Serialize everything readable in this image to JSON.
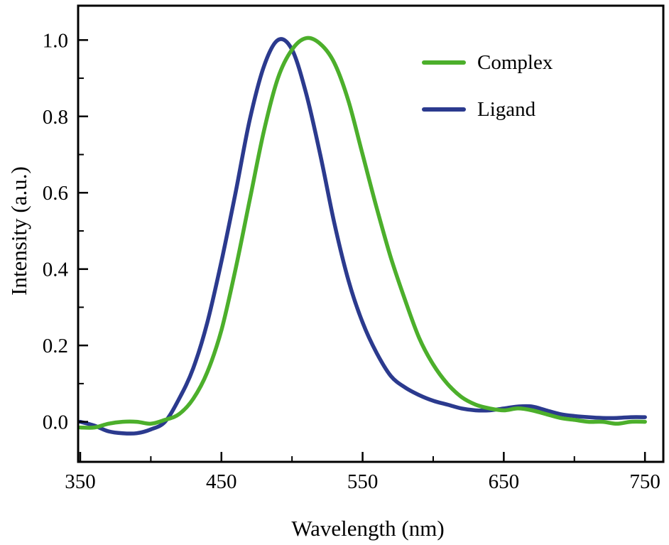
{
  "figure": {
    "background": "#ffffff",
    "frame_color": "#000000",
    "text_color": "#000000"
  },
  "chart_data": {
    "type": "line",
    "xlabel": "Wavelength (nm)",
    "ylabel": "Intensity (a.u.)",
    "xlim": [
      348.5,
      763
    ],
    "ylim": [
      -0.105,
      1.09
    ],
    "grid": false,
    "legend_position": "top-right",
    "x_major_ticks": [
      350,
      450,
      550,
      650,
      750
    ],
    "x_tick_labels": [
      "350",
      "450",
      "550",
      "650",
      "750"
    ],
    "x_minor_ticks": [
      400,
      500,
      600,
      700
    ],
    "y_major_ticks": [
      0.0,
      0.2,
      0.4,
      0.6,
      0.8,
      1.0
    ],
    "y_tick_labels": [
      "0.0",
      "0.2",
      "0.4",
      "0.6",
      "0.8",
      "1.0"
    ],
    "y_minor_ticks": [
      0.1,
      0.3,
      0.5,
      0.7,
      0.9
    ],
    "x": [
      350,
      360,
      370,
      380,
      390,
      400,
      410,
      420,
      430,
      440,
      450,
      460,
      470,
      480,
      490,
      500,
      510,
      520,
      530,
      540,
      550,
      560,
      570,
      580,
      590,
      600,
      610,
      620,
      630,
      640,
      650,
      660,
      670,
      680,
      690,
      700,
      710,
      720,
      730,
      740,
      750
    ],
    "series": [
      {
        "name": "Complex",
        "color": "#4caf2b",
        "peak_nm": 515,
        "values": [
          -0.015,
          -0.015,
          -0.005,
          0.0,
          0.0,
          -0.005,
          0.005,
          0.02,
          0.06,
          0.13,
          0.24,
          0.4,
          0.58,
          0.76,
          0.9,
          0.975,
          1.005,
          0.99,
          0.94,
          0.84,
          0.7,
          0.56,
          0.43,
          0.32,
          0.22,
          0.15,
          0.1,
          0.065,
          0.045,
          0.035,
          0.03,
          0.035,
          0.03,
          0.02,
          0.01,
          0.005,
          0.0,
          0.0,
          -0.005,
          0.0,
          0.0
        ]
      },
      {
        "name": "Ligand",
        "color": "#2b3a8e",
        "peak_nm": 490,
        "values": [
          0.0,
          -0.01,
          -0.025,
          -0.03,
          -0.03,
          -0.02,
          0.0,
          0.06,
          0.14,
          0.26,
          0.42,
          0.6,
          0.79,
          0.93,
          1.0,
          0.975,
          0.86,
          0.7,
          0.52,
          0.37,
          0.26,
          0.18,
          0.12,
          0.09,
          0.07,
          0.055,
          0.045,
          0.035,
          0.03,
          0.03,
          0.035,
          0.04,
          0.04,
          0.03,
          0.02,
          0.015,
          0.012,
          0.01,
          0.01,
          0.012,
          0.012
        ]
      }
    ]
  }
}
